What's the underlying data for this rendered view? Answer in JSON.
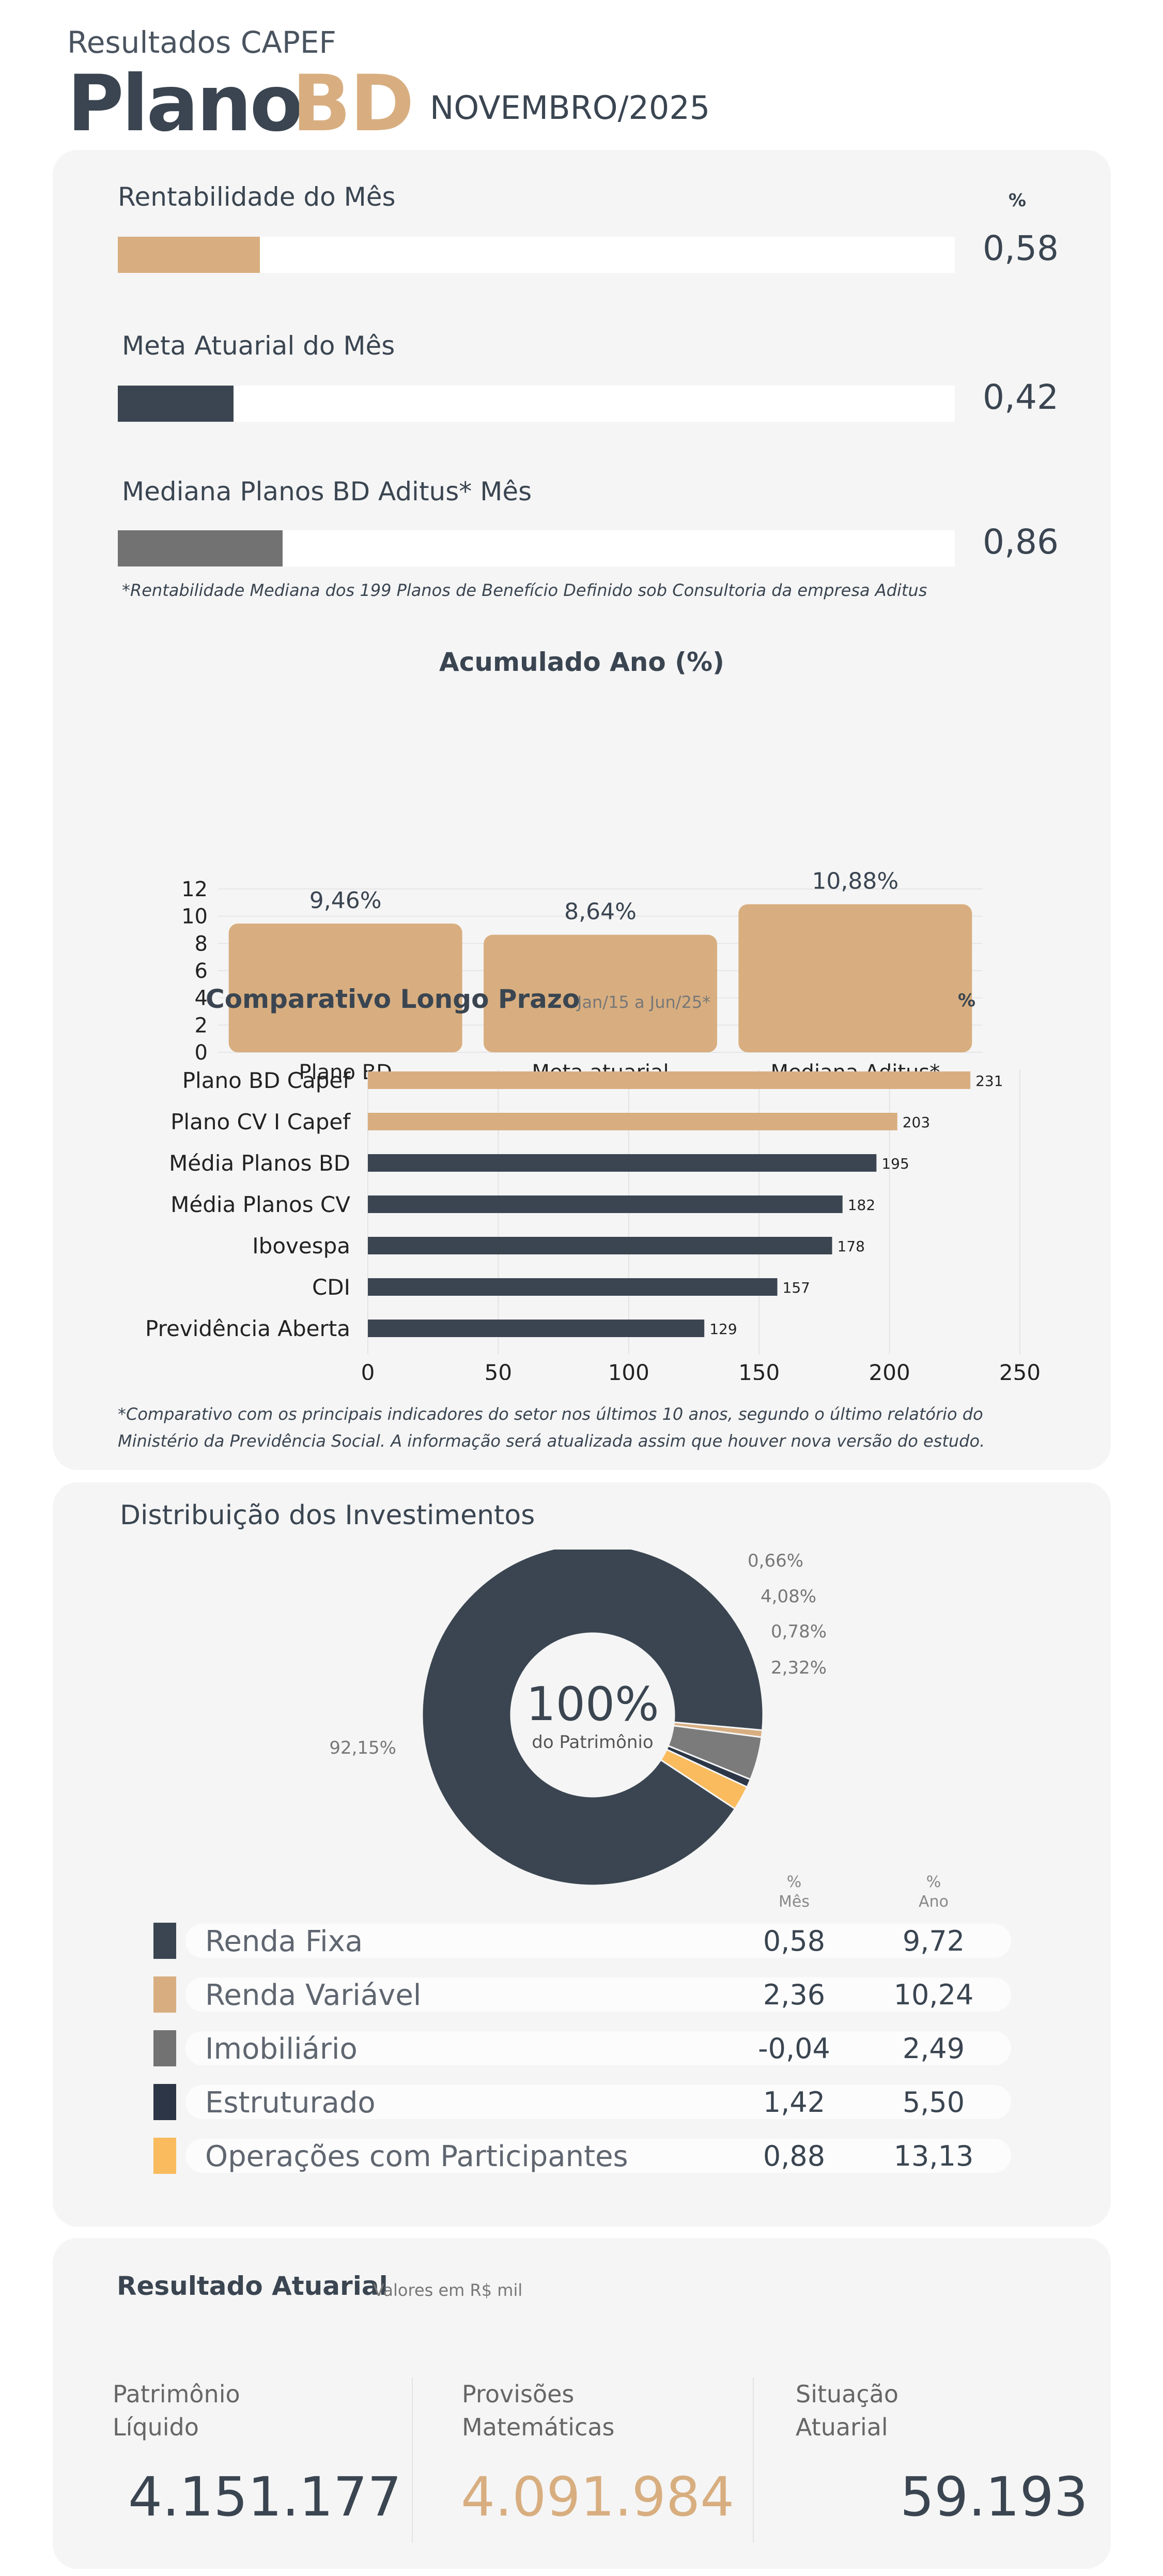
{
  "header": {
    "subtitle": "Resultados CAPEF",
    "title_part1": "Plano",
    "title_part2": "BD",
    "date": "NOVEMBRO/2025"
  },
  "monthly": {
    "percent_header": "%",
    "items": [
      {
        "label": "Rentabilidade do Mês",
        "value": "0,58",
        "fill_fraction": 0.17,
        "color": "#d8ae80"
      },
      {
        "label": "Meta Atuarial do Mês",
        "value": "0,42",
        "fill_fraction": 0.138,
        "color": "#3a4551"
      },
      {
        "label": "Mediana Planos BD Aditus* Mês",
        "value": "0,86",
        "fill_fraction": 0.197,
        "color": "#727272"
      }
    ],
    "note": "*Rentabilidade Mediana dos 199 Planos de Benefício Definido sob Consultoria da empresa Aditus"
  },
  "chart_data": [
    {
      "type": "bar",
      "title": "Acumulado Ano (%)",
      "categories": [
        "Plano BD",
        "Meta atuarial",
        "Mediana Aditus*"
      ],
      "values": [
        9.46,
        8.64,
        10.88
      ],
      "data_labels": [
        "9,46%",
        "8,64%",
        "10,88%"
      ],
      "ylim": [
        0,
        12
      ],
      "yticks": [
        0,
        2,
        4,
        6,
        8,
        10,
        12
      ],
      "color": "#d8ae80",
      "grid": true
    },
    {
      "type": "bar",
      "orientation": "horizontal",
      "title": "Comparativo Longo Prazo",
      "subtitle": "Jan/15 a Jun/25*",
      "unit_label": "%",
      "categories": [
        "Plano BD Capef",
        "Plano CV I Capef",
        "Média Planos BD",
        "Média Planos CV",
        "Ibovespa",
        "CDI",
        "Previdência Aberta"
      ],
      "values": [
        231,
        203,
        195,
        182,
        178,
        157,
        129
      ],
      "colors": [
        "#d8ae80",
        "#d8ae80",
        "#3a4551",
        "#3a4551",
        "#3a4551",
        "#3a4551",
        "#3a4551"
      ],
      "xlim": [
        0,
        250
      ],
      "xticks": [
        0,
        50,
        100,
        150,
        200,
        250
      ],
      "grid": true
    },
    {
      "type": "pie",
      "title": "Distribuição dos Investimentos",
      "center_value": "100%",
      "center_label": "do Patrimônio",
      "slices": [
        {
          "name": "Renda Fixa",
          "value": 92.15,
          "label": "92,15%",
          "color": "#3a4551"
        },
        {
          "name": "Renda Variável",
          "value": 0.66,
          "label": "0,66%",
          "color": "#d8ae80"
        },
        {
          "name": "Imobiliário",
          "value": 4.08,
          "label": "4,08%",
          "color": "#7b7b7b"
        },
        {
          "name": "Estruturado",
          "value": 0.78,
          "label": "0,78%",
          "color": "#2c3646"
        },
        {
          "name": "Operações com Participantes",
          "value": 2.32,
          "label": "2,32%",
          "color": "#f9bb5d"
        }
      ]
    }
  ],
  "longterm_note": "*Comparativo com os principais indicadores do setor nos últimos 10 anos, segundo o último relatório do Ministério da Previdência Social. A informação será atualizada assim que houver nova versão do estudo.",
  "distribution": {
    "title": "Distribuição dos Investimentos",
    "col_mes": {
      "unit": "%",
      "label": "Mês"
    },
    "col_ano": {
      "unit": "%",
      "label": "Ano"
    },
    "rows": [
      {
        "name": "Renda Fixa",
        "mes": "0,58",
        "ano": "9,72",
        "color": "#3a4551"
      },
      {
        "name": "Renda Variável",
        "mes": "2,36",
        "ano": "10,24",
        "color": "#d8ae80"
      },
      {
        "name": "Imobiliário",
        "mes": "-0,04",
        "ano": "2,49",
        "color": "#727272"
      },
      {
        "name": "Estruturado",
        "mes": "1,42",
        "ano": "5,50",
        "color": "#2c3646"
      },
      {
        "name": "Operações com Participantes",
        "mes": "0,88",
        "ano": "13,13",
        "color": "#f9bb5d"
      }
    ]
  },
  "actuarial": {
    "title": "Resultado Atuarial",
    "subtitle": "Valores em R$ mil",
    "items": [
      {
        "label_line1": "Patrimônio",
        "label_line2": "Líquido",
        "value": "4.151.177",
        "color": "#3a4551"
      },
      {
        "label_line1": "Provisões",
        "label_line2": "Matemáticas",
        "value": "4.091.984",
        "color": "#d8ae80"
      },
      {
        "label_line1": "Situação",
        "label_line2": "Atuarial",
        "value": "59.193",
        "color": "#3a4551"
      }
    ]
  }
}
